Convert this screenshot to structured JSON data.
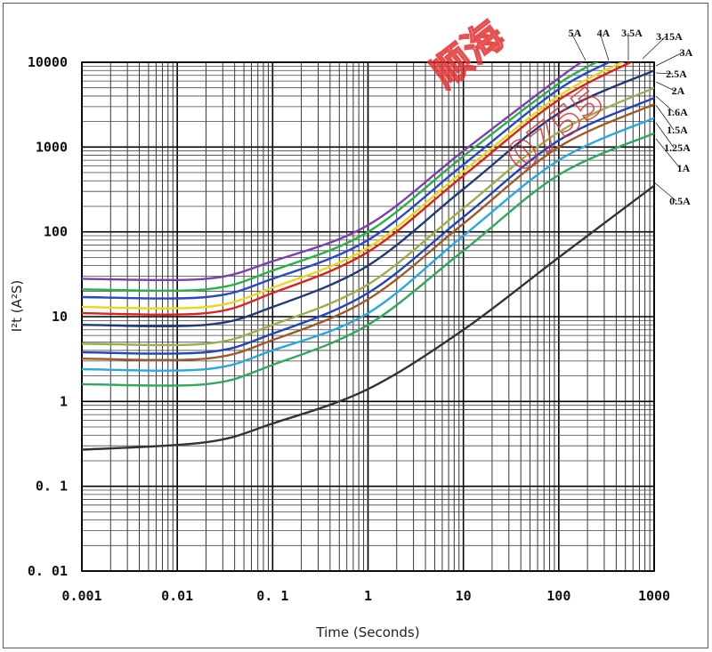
{
  "chart_data": {
    "type": "line",
    "xscale": "log",
    "yscale": "log",
    "xlim": [
      0.001,
      1000
    ],
    "ylim": [
      0.01,
      10000
    ],
    "xlabel": "Time (Seconds)",
    "ylabel": "I²t (A²S)",
    "grid": true,
    "x_ticks": [
      "0.001",
      "0.01",
      "0. 1",
      "1",
      "10",
      "100",
      "1000"
    ],
    "y_ticks": [
      "10000",
      "1000",
      "100",
      "10",
      "1",
      "0. 1",
      "0. 01"
    ],
    "series": [
      {
        "name": "5A",
        "color": "#7b3fb0",
        "points": [
          [
            0.001,
            28
          ],
          [
            0.02,
            28
          ],
          [
            0.1,
            45
          ],
          [
            1,
            120
          ],
          [
            10,
            900
          ],
          [
            100,
            6500
          ],
          [
            220,
            12000
          ]
        ]
      },
      {
        "name": "4A",
        "color": "#2ab04a",
        "points": [
          [
            0.001,
            21
          ],
          [
            0.02,
            21
          ],
          [
            0.1,
            35
          ],
          [
            1,
            100
          ],
          [
            10,
            780
          ],
          [
            100,
            5600
          ],
          [
            350,
            12000
          ]
        ]
      },
      {
        "name": "3.5A",
        "color": "#2848c8",
        "points": [
          [
            0.001,
            17
          ],
          [
            0.02,
            17
          ],
          [
            0.1,
            28
          ],
          [
            1,
            80
          ],
          [
            10,
            620
          ],
          [
            100,
            4800
          ],
          [
            480,
            12000
          ]
        ]
      },
      {
        "name": "3.15A",
        "color": "#e8d820",
        "points": [
          [
            0.001,
            13
          ],
          [
            0.02,
            13
          ],
          [
            0.1,
            22
          ],
          [
            1,
            65
          ],
          [
            10,
            520
          ],
          [
            100,
            4000
          ],
          [
            650,
            12000
          ]
        ]
      },
      {
        "name": "3A",
        "color": "#e0201c",
        "points": [
          [
            0.001,
            11
          ],
          [
            0.02,
            11
          ],
          [
            0.1,
            19
          ],
          [
            1,
            58
          ],
          [
            10,
            460
          ],
          [
            100,
            3600
          ],
          [
            800,
            12000
          ]
        ]
      },
      {
        "name": "2.5A",
        "color": "#1e3a78",
        "points": [
          [
            0.001,
            8
          ],
          [
            0.02,
            8
          ],
          [
            0.1,
            13
          ],
          [
            1,
            40
          ],
          [
            10,
            320
          ],
          [
            100,
            2500
          ],
          [
            1000,
            8000
          ]
        ]
      },
      {
        "name": "2A",
        "color": "#9aae50",
        "points": [
          [
            0.001,
            4.8
          ],
          [
            0.02,
            4.8
          ],
          [
            0.1,
            8
          ],
          [
            1,
            24
          ],
          [
            10,
            190
          ],
          [
            100,
            1500
          ],
          [
            1000,
            5000
          ]
        ]
      },
      {
        "name": "1.6A",
        "color": "#2244bb",
        "points": [
          [
            0.001,
            3.8
          ],
          [
            0.02,
            3.8
          ],
          [
            0.1,
            6.3
          ],
          [
            1,
            19
          ],
          [
            10,
            150
          ],
          [
            100,
            1200
          ],
          [
            1000,
            3800
          ]
        ]
      },
      {
        "name": "1.5A",
        "color": "#a05a2a",
        "points": [
          [
            0.001,
            3.2
          ],
          [
            0.02,
            3.2
          ],
          [
            0.1,
            5.3
          ],
          [
            1,
            16
          ],
          [
            10,
            125
          ],
          [
            100,
            1000
          ],
          [
            1000,
            3200
          ]
        ]
      },
      {
        "name": "1.25A",
        "color": "#28a8e0",
        "points": [
          [
            0.001,
            2.4
          ],
          [
            0.02,
            2.4
          ],
          [
            0.1,
            4
          ],
          [
            1,
            11
          ],
          [
            10,
            90
          ],
          [
            100,
            700
          ],
          [
            1000,
            2200
          ]
        ]
      },
      {
        "name": "1A",
        "color": "#30a860",
        "points": [
          [
            0.001,
            1.6
          ],
          [
            0.02,
            1.6
          ],
          [
            0.1,
            2.7
          ],
          [
            1,
            8
          ],
          [
            10,
            60
          ],
          [
            100,
            470
          ],
          [
            1000,
            1450
          ]
        ]
      },
      {
        "name": "0.5A",
        "color": "#333333",
        "points": [
          [
            0.001,
            0.27
          ],
          [
            0.02,
            0.33
          ],
          [
            0.1,
            0.55
          ],
          [
            1,
            1.4
          ],
          [
            10,
            7
          ],
          [
            100,
            50
          ],
          [
            1000,
            350
          ]
        ]
      }
    ]
  },
  "watermark": [
    "顺海",
    "0755"
  ]
}
